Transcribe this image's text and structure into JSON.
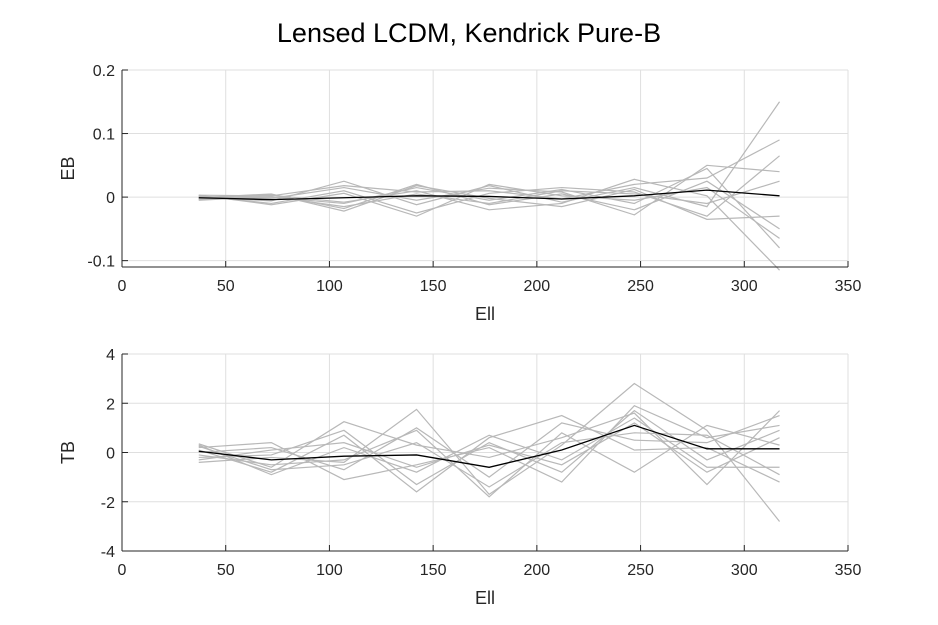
{
  "title": "Lensed LCDM, Kendrick Pure-B",
  "colors": {
    "sim": "#b8b8b8",
    "mean": "#000000",
    "grid": "#dfdfdf",
    "axis": "#262626"
  },
  "chart_data": [
    {
      "type": "line",
      "xlabel": "Ell",
      "ylabel": "EB",
      "xlim": [
        0,
        350
      ],
      "ylim": [
        -0.11,
        0.2
      ],
      "xticks": [
        0,
        50,
        100,
        150,
        200,
        250,
        300,
        350
      ],
      "xtick_labels": [
        "0",
        "50",
        "100",
        "150",
        "200",
        "250",
        "300",
        "350"
      ],
      "yticks": [
        -0.1,
        0,
        0.1,
        0.2
      ],
      "ytick_labels": [
        "-0.1",
        "0",
        "0.1",
        "0.2"
      ],
      "grid": true,
      "x": [
        37,
        72,
        107,
        142,
        177,
        212,
        247,
        282,
        317
      ],
      "mean": [
        -0.001,
        -0.004,
        -0.001,
        0.002,
        0.001,
        -0.003,
        0.002,
        0.011,
        0.002
      ],
      "sims": [
        [
          0.003,
          0.002,
          0.018,
          0.008,
          0.01,
          -0.003,
          0.02,
          0.03,
          0.09
        ],
        [
          -0.002,
          0.0,
          -0.01,
          0.015,
          -0.005,
          0.012,
          -0.01,
          0.045,
          -0.08
        ],
        [
          0.0,
          -0.006,
          0.025,
          -0.012,
          0.018,
          -0.008,
          0.015,
          -0.015,
          0.15
        ],
        [
          -0.003,
          0.004,
          -0.018,
          0.02,
          -0.012,
          0.005,
          -0.02,
          0.025,
          -0.05
        ],
        [
          0.002,
          -0.01,
          0.01,
          -0.025,
          0.006,
          0.015,
          0.008,
          -0.03,
          0.065
        ],
        [
          -0.004,
          0.003,
          -0.008,
          0.01,
          -0.02,
          -0.01,
          0.028,
          0.002,
          -0.115
        ],
        [
          0.001,
          -0.002,
          0.015,
          -0.005,
          0.014,
          0.008,
          -0.028,
          0.05,
          0.04
        ],
        [
          -0.001,
          0.005,
          -0.022,
          0.018,
          -0.002,
          -0.015,
          0.012,
          -0.035,
          -0.03
        ],
        [
          0.003,
          -0.012,
          0.006,
          -0.03,
          0.02,
          0.002,
          -0.005,
          0.015,
          -0.065
        ],
        [
          -0.005,
          0.001,
          -0.015,
          0.005,
          -0.01,
          0.01,
          0.005,
          -0.01,
          0.025
        ]
      ]
    },
    {
      "type": "line",
      "xlabel": "Ell",
      "ylabel": "TB",
      "xlim": [
        0,
        350
      ],
      "ylim": [
        -4,
        4
      ],
      "xticks": [
        0,
        50,
        100,
        150,
        200,
        250,
        300,
        350
      ],
      "xtick_labels": [
        "0",
        "50",
        "100",
        "150",
        "200",
        "250",
        "300",
        "350"
      ],
      "yticks": [
        -4,
        -2,
        0,
        2,
        4
      ],
      "ytick_labels": [
        "-4",
        "-2",
        "0",
        "2",
        "4"
      ],
      "grid": true,
      "x": [
        37,
        72,
        107,
        142,
        177,
        212,
        247,
        282,
        317
      ],
      "mean": [
        0.05,
        -0.3,
        -0.15,
        -0.1,
        -0.6,
        0.1,
        1.1,
        0.15,
        0.15
      ],
      "sims": [
        [
          0.35,
          -0.6,
          1.25,
          0.3,
          -0.2,
          0.6,
          1.6,
          -1.3,
          1.7
        ],
        [
          -0.4,
          -0.2,
          -0.4,
          1.75,
          -1.7,
          0.3,
          2.8,
          0.9,
          -2.8
        ],
        [
          0.1,
          -0.8,
          0.7,
          -1.6,
          0.6,
          1.5,
          0.1,
          0.2,
          -1.2
        ],
        [
          0.2,
          0.4,
          -1.1,
          -0.5,
          0.2,
          -1.2,
          1.9,
          0.6,
          1.1
        ],
        [
          -0.1,
          -0.5,
          -0.3,
          0.9,
          -1.8,
          0.8,
          -0.8,
          1.1,
          0.3
        ],
        [
          0.3,
          -0.9,
          0.2,
          -0.8,
          0.7,
          -0.3,
          1.4,
          -0.6,
          -0.6
        ],
        [
          0.0,
          0.2,
          -0.7,
          1.0,
          -1.0,
          1.2,
          0.5,
          0.4,
          1.5
        ],
        [
          -0.2,
          -0.1,
          0.9,
          -1.3,
          0.4,
          -0.8,
          1.7,
          -0.3,
          0.9
        ],
        [
          0.25,
          -0.7,
          -0.5,
          0.4,
          -1.4,
          0.4,
          0.8,
          0.7,
          -0.9
        ],
        [
          -0.3,
          0.1,
          0.4,
          -0.6,
          0.3,
          -0.5,
          1.2,
          -0.8,
          0.6
        ]
      ]
    }
  ]
}
